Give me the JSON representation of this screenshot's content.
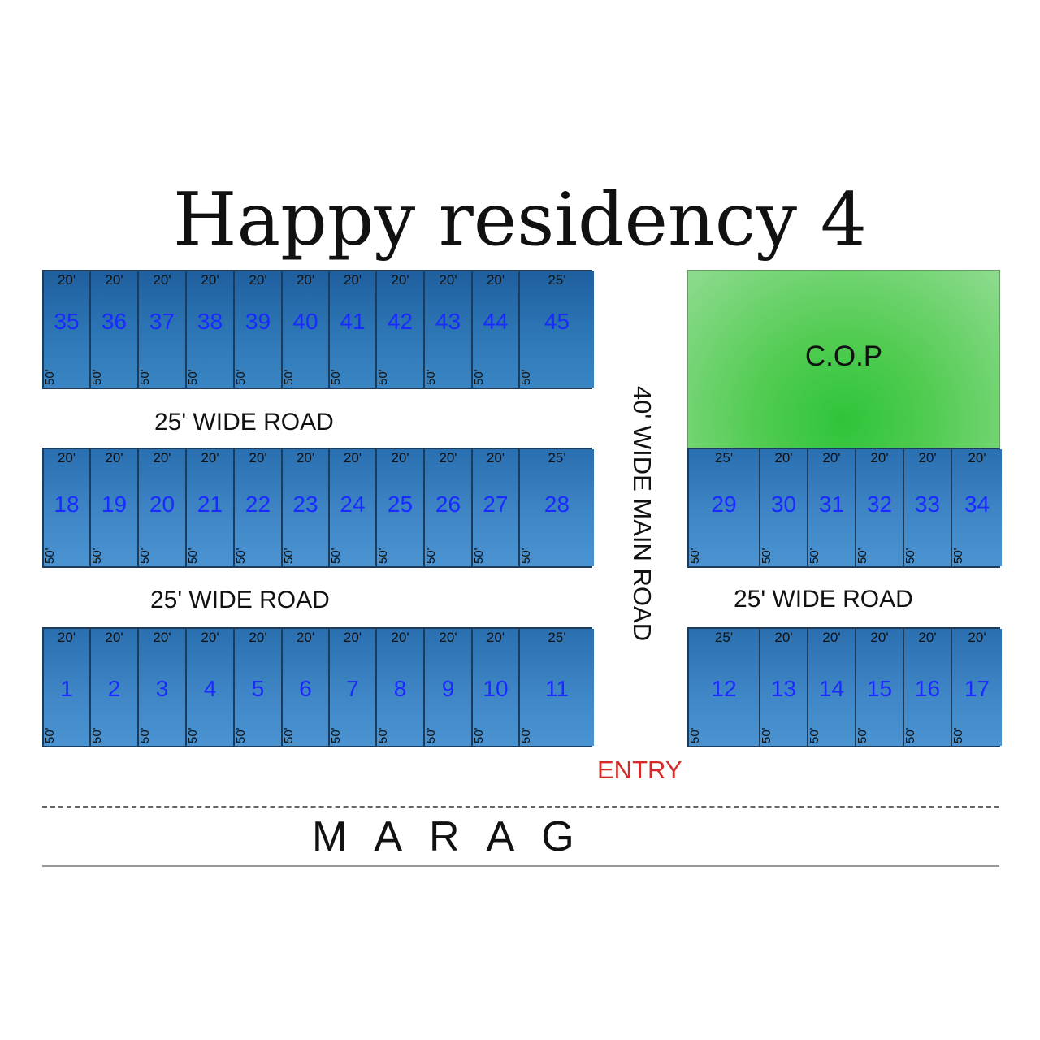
{
  "title": "Happy residency 4",
  "colors": {
    "plot": "#3f86c6",
    "cop": "#2ec43a",
    "entry": "#d42a2a",
    "plot_number": "#1a2aff"
  },
  "row_top": {
    "plots": [
      {
        "w": "20'",
        "n": "35",
        "d": "50'"
      },
      {
        "w": "20'",
        "n": "36",
        "d": "50'"
      },
      {
        "w": "20'",
        "n": "37",
        "d": "50'"
      },
      {
        "w": "20'",
        "n": "38",
        "d": "50'"
      },
      {
        "w": "20'",
        "n": "39",
        "d": "50'"
      },
      {
        "w": "20'",
        "n": "40",
        "d": "50'"
      },
      {
        "w": "20'",
        "n": "41",
        "d": "50'"
      },
      {
        "w": "20'",
        "n": "42",
        "d": "50'"
      },
      {
        "w": "20'",
        "n": "43",
        "d": "50'"
      },
      {
        "w": "20'",
        "n": "44",
        "d": "50'"
      },
      {
        "w": "25'",
        "n": "45",
        "d": "50'"
      }
    ]
  },
  "row_mid_left": {
    "plots": [
      {
        "w": "20'",
        "n": "18",
        "d": "50'"
      },
      {
        "w": "20'",
        "n": "19",
        "d": "50'"
      },
      {
        "w": "20'",
        "n": "20",
        "d": "50'"
      },
      {
        "w": "20'",
        "n": "21",
        "d": "50'"
      },
      {
        "w": "20'",
        "n": "22",
        "d": "50'"
      },
      {
        "w": "20'",
        "n": "23",
        "d": "50'"
      },
      {
        "w": "20'",
        "n": "24",
        "d": "50'"
      },
      {
        "w": "20'",
        "n": "25",
        "d": "50'"
      },
      {
        "w": "20'",
        "n": "26",
        "d": "50'"
      },
      {
        "w": "20'",
        "n": "27",
        "d": "50'"
      },
      {
        "w": "25'",
        "n": "28",
        "d": "50'"
      }
    ]
  },
  "row_bot_left": {
    "plots": [
      {
        "w": "20'",
        "n": "1",
        "d": "50'"
      },
      {
        "w": "20'",
        "n": "2",
        "d": "50'"
      },
      {
        "w": "20'",
        "n": "3",
        "d": "50'"
      },
      {
        "w": "20'",
        "n": "4",
        "d": "50'"
      },
      {
        "w": "20'",
        "n": "5",
        "d": "50'"
      },
      {
        "w": "20'",
        "n": "6",
        "d": "50'"
      },
      {
        "w": "20'",
        "n": "7",
        "d": "50'"
      },
      {
        "w": "20'",
        "n": "8",
        "d": "50'"
      },
      {
        "w": "20'",
        "n": "9",
        "d": "50'"
      },
      {
        "w": "20'",
        "n": "10",
        "d": "50'"
      },
      {
        "w": "25'",
        "n": "11",
        "d": "50'"
      }
    ]
  },
  "row_mid_right": {
    "plots": [
      {
        "w": "25'",
        "n": "29",
        "d": "50'"
      },
      {
        "w": "20'",
        "n": "30",
        "d": "50'"
      },
      {
        "w": "20'",
        "n": "31",
        "d": "50'"
      },
      {
        "w": "20'",
        "n": "32",
        "d": "50'"
      },
      {
        "w": "20'",
        "n": "33",
        "d": "50'"
      },
      {
        "w": "20'",
        "n": "34",
        "d": "50'"
      }
    ]
  },
  "row_bot_right": {
    "plots": [
      {
        "w": "25'",
        "n": "12",
        "d": "50'"
      },
      {
        "w": "20'",
        "n": "13",
        "d": "50'"
      },
      {
        "w": "20'",
        "n": "14",
        "d": "50'"
      },
      {
        "w": "20'",
        "n": "15",
        "d": "50'"
      },
      {
        "w": "20'",
        "n": "16",
        "d": "50'"
      },
      {
        "w": "20'",
        "n": "17",
        "d": "50'"
      }
    ]
  },
  "roads": {
    "upper_left": "25' WIDE ROAD",
    "lower_left": "25' WIDE ROAD",
    "lower_right": "25' WIDE ROAD",
    "main": "40' WIDE MAIN ROAD"
  },
  "cop": "C.O.P",
  "entry": "ENTRY",
  "highway": "MARAG"
}
